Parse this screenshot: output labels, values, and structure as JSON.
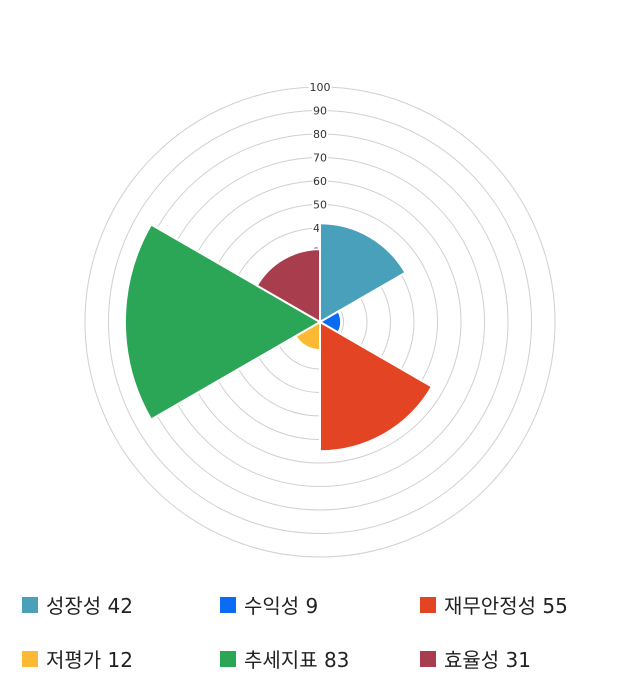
{
  "chart_data": {
    "type": "polar-area",
    "rlim": [
      0,
      100
    ],
    "ticks": [
      10,
      20,
      30,
      40,
      50,
      60,
      70,
      80,
      90,
      100
    ],
    "grid": true,
    "legend_position": "bottom",
    "categories": [
      "성장성",
      "수익성",
      "재무안정성",
      "저평가",
      "추세지표",
      "효율성"
    ],
    "values": [
      42,
      9,
      55,
      12,
      83,
      31
    ],
    "colors": [
      "#48a0bb",
      "#0a6cf5",
      "#e34524",
      "#fbb934",
      "#2ba656",
      "#a83e4d"
    ]
  },
  "legend": [
    {
      "label": "성장성 42"
    },
    {
      "label": "수익성 9"
    },
    {
      "label": "재무안정성 55"
    },
    {
      "label": "저평가 12"
    },
    {
      "label": "추세지표 83"
    },
    {
      "label": "효율성 31"
    }
  ]
}
